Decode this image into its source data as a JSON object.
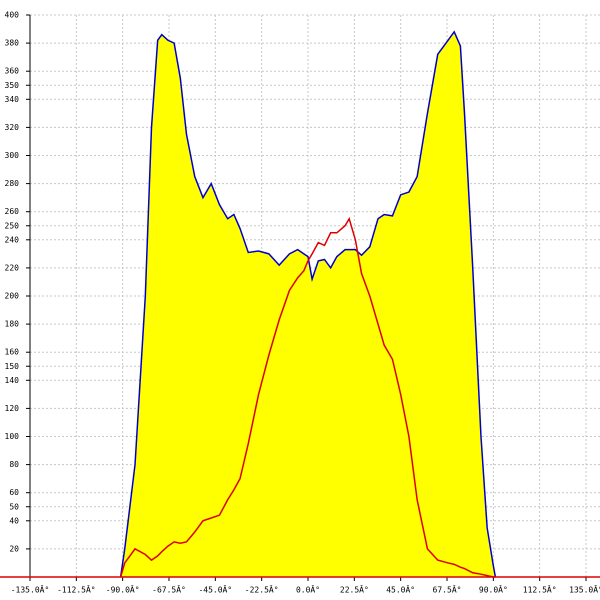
{
  "chart_data": {
    "type": "area",
    "x": [
      -91,
      -89,
      -84,
      -79,
      -76,
      -73,
      -71,
      -68,
      -65,
      -62,
      -59,
      -55,
      -51,
      -47,
      -43,
      -39,
      -36,
      -33,
      -29,
      -24,
      -19,
      -14,
      -9,
      -5,
      -2,
      0,
      2,
      5,
      8,
      11,
      14,
      18,
      20,
      23,
      26,
      30,
      34,
      37,
      41,
      45,
      49,
      53,
      58,
      63,
      68,
      71,
      74,
      76,
      80,
      84,
      87,
      90,
      91
    ],
    "series": [
      {
        "color": "#0000cc",
        "fill": "#ffff00",
        "values": [
          0,
          20,
          80,
          200,
          320,
          382,
          386,
          382,
          380,
          355,
          315,
          285,
          270,
          280,
          265,
          255,
          258,
          248,
          231,
          232,
          230,
          222,
          230,
          233,
          230,
          228,
          212,
          225,
          226,
          220,
          228,
          233,
          233,
          233,
          229,
          235,
          255,
          258,
          257,
          272,
          274,
          285,
          330,
          372,
          382,
          388,
          378,
          330,
          220,
          100,
          35,
          8,
          0
        ]
      },
      {
        "color": "#dd0000",
        "values": [
          0,
          10,
          20,
          16,
          12,
          15,
          18,
          22,
          25,
          24,
          25,
          32,
          40,
          42,
          44,
          55,
          62,
          70,
          95,
          130,
          158,
          183,
          204,
          213,
          218,
          225,
          230,
          238,
          236,
          245,
          245,
          250,
          255,
          240,
          216,
          200,
          180,
          165,
          155,
          130,
          100,
          55,
          20,
          12,
          10,
          9,
          7,
          6,
          3,
          2,
          1,
          0,
          0
        ]
      }
    ],
    "xlim": [
      -135,
      135
    ],
    "xticks": [
      {
        "value": -135,
        "label": "-135.0Â°"
      },
      {
        "value": -112.5,
        "label": "-112.5Â°"
      },
      {
        "value": -90,
        "label": "-90.0Â°"
      },
      {
        "value": -67.5,
        "label": "-67.5Â°"
      },
      {
        "value": -45,
        "label": "-45.0Â°"
      },
      {
        "value": -22.5,
        "label": "-22.5Â°"
      },
      {
        "value": 0,
        "label": "0.0Â°"
      },
      {
        "value": 22.5,
        "label": "22.5Â°"
      },
      {
        "value": 45,
        "label": "45.0Â°"
      },
      {
        "value": 67.5,
        "label": "67.5Â°"
      },
      {
        "value": 90,
        "label": "90.0Â°"
      },
      {
        "value": 112.5,
        "label": "112.5Â°"
      },
      {
        "value": 135,
        "label": "135.0Â°"
      }
    ],
    "ylim": [
      0,
      400
    ],
    "yticks": [
      20,
      40,
      50,
      60,
      80,
      100,
      120,
      140,
      150,
      160,
      180,
      200,
      220,
      240,
      250,
      260,
      280,
      300,
      320,
      340,
      350,
      360,
      380,
      400
    ],
    "grid": true
  }
}
